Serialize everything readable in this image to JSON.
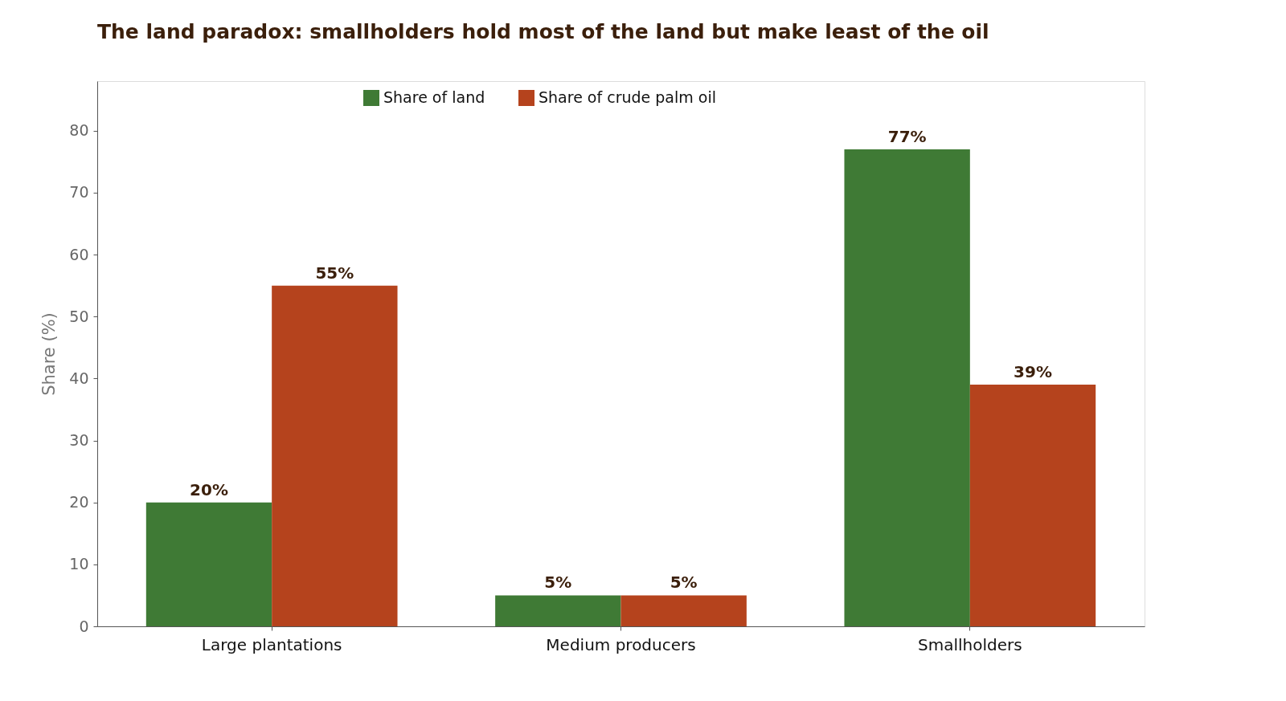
{
  "chart_data": {
    "type": "bar",
    "title": "The land paradox: smallholders hold most of the land but make least of the oil",
    "ylabel": "Share (%)",
    "categories": [
      "Large plantations",
      "Medium producers",
      "Smallholders"
    ],
    "series": [
      {
        "name": "Share of land",
        "color": "#3f7a35",
        "values": [
          20,
          5,
          77
        ],
        "value_labels": [
          "20%",
          "5%",
          "77%"
        ]
      },
      {
        "name": "Share of crude palm oil",
        "color": "#b5431d",
        "values": [
          55,
          5,
          39
        ],
        "value_labels": [
          "55%",
          "5%",
          "39%"
        ]
      }
    ],
    "ylim": [
      0,
      88
    ],
    "yticks": [
      0,
      10,
      20,
      30,
      40,
      50,
      60,
      70,
      80
    ],
    "grid": false,
    "legend": "top"
  }
}
